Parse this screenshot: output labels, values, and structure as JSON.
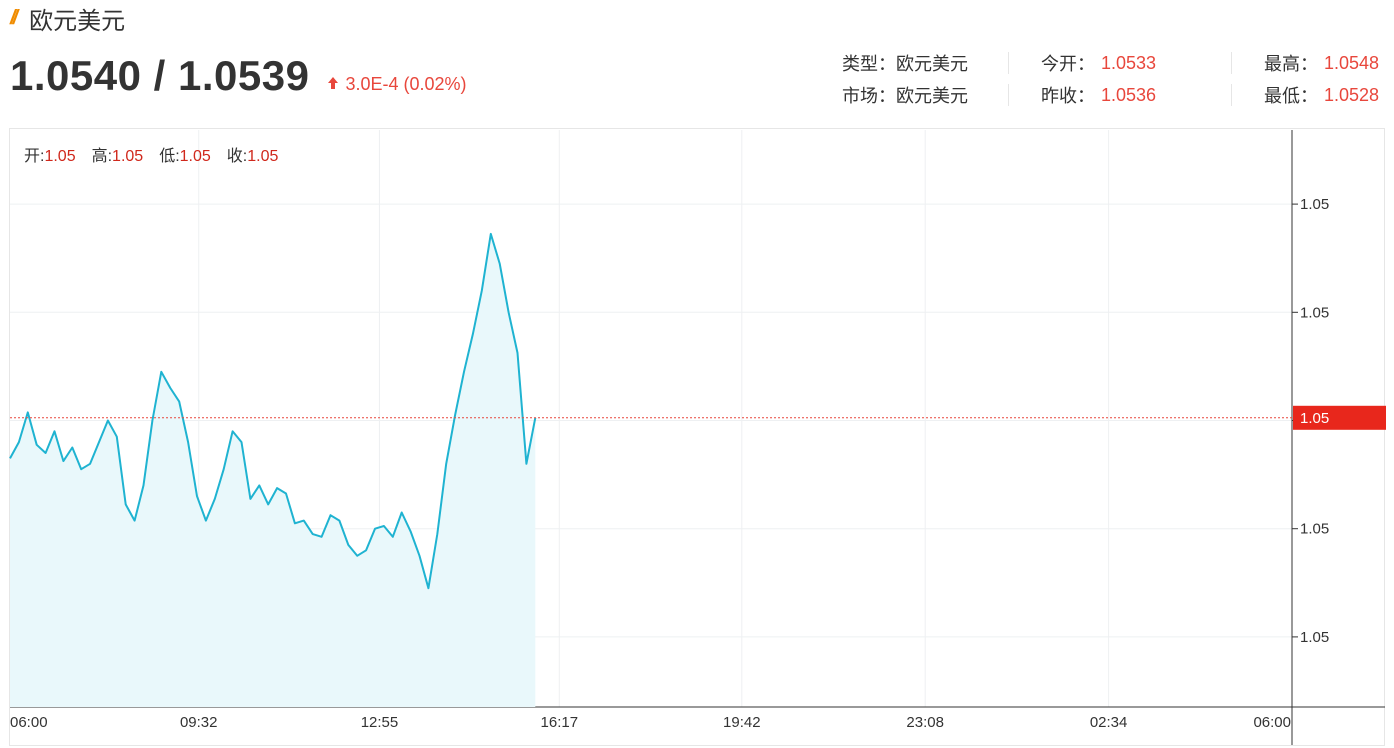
{
  "header": {
    "title": "欧元美元",
    "bid_ask": "1.0540 / 1.0539",
    "change": "3.0E-4 (0.02%)",
    "up_color": "#e8473c",
    "icon": "double-slash-icon"
  },
  "info": {
    "type_label": "类型：",
    "type_value": "欧元美元",
    "market_label": "市场：",
    "market_value": "欧元美元",
    "open_label": "今开：",
    "open_value": "1.0533",
    "prev_close_label": "昨收：",
    "prev_close_value": "1.0536",
    "high_label": "最高：",
    "high_value": "1.0548",
    "low_label": "最低：",
    "low_value": "1.0528"
  },
  "ohlc": {
    "open_label": "开:",
    "open_value": "1.05",
    "high_label": "高:",
    "high_value": "1.05",
    "low_label": "低:",
    "low_value": "1.05",
    "close_label": "收:",
    "close_value": "1.05"
  },
  "chart_data": {
    "type": "area",
    "line_color": "#1fb3d1",
    "fill_color": "#e9f8fb",
    "current_line_color": "#e8473c",
    "current_value": 1.05381,
    "current_label": "1.05",
    "ylim": [
      1.0528,
      1.0548
    ],
    "y_ticks": [
      1.053,
      1.0534,
      1.0538,
      1.0542,
      1.0546
    ],
    "y_tick_labels": [
      "1.05",
      "1.05",
      "1.05",
      "1.05",
      "1.05"
    ],
    "x_ticks": [
      "06:00",
      "09:32",
      "12:55",
      "16:17",
      "19:42",
      "23:08",
      "02:34",
      "06:00"
    ],
    "x_tick_minutes": [
      0,
      212,
      415,
      617,
      822,
      1028,
      1234,
      1440
    ],
    "grid": true,
    "x": [
      0,
      10,
      20,
      30,
      40,
      50,
      60,
      70,
      80,
      90,
      100,
      110,
      120,
      130,
      140,
      150,
      160,
      170,
      180,
      190,
      200,
      210,
      220,
      230,
      240,
      250,
      260,
      270,
      280,
      290,
      300,
      310,
      320,
      330,
      340,
      350,
      360,
      370,
      380,
      390,
      400,
      410,
      420,
      430,
      440,
      450,
      460,
      470,
      480,
      490,
      500,
      510,
      520,
      530,
      540,
      550,
      560,
      570,
      580,
      590
    ],
    "y": [
      1.05366,
      1.05372,
      1.05383,
      1.05371,
      1.05368,
      1.05376,
      1.05365,
      1.0537,
      1.05362,
      1.05364,
      1.05372,
      1.0538,
      1.05374,
      1.05349,
      1.05343,
      1.05356,
      1.0538,
      1.05398,
      1.05392,
      1.05387,
      1.05372,
      1.05352,
      1.05343,
      1.05351,
      1.05362,
      1.05376,
      1.05372,
      1.05351,
      1.05356,
      1.05349,
      1.05355,
      1.05353,
      1.05342,
      1.05343,
      1.05338,
      1.05337,
      1.05345,
      1.05343,
      1.05334,
      1.0533,
      1.05332,
      1.0534,
      1.05341,
      1.05337,
      1.05346,
      1.05339,
      1.0533,
      1.05318,
      1.05338,
      1.05364,
      1.05382,
      1.05398,
      1.05412,
      1.05428,
      1.05449,
      1.05438,
      1.0542,
      1.05405,
      1.05364,
      1.05381
    ]
  }
}
